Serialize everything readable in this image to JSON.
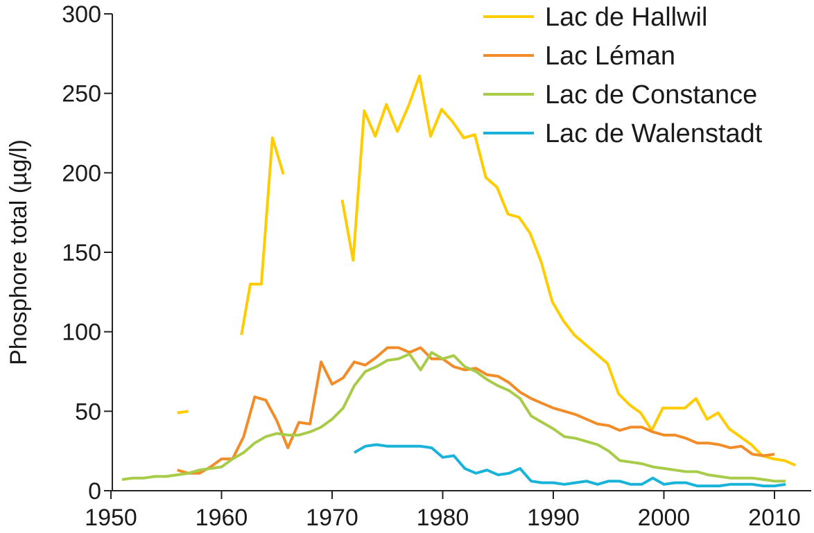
{
  "chart_data": {
    "type": "line",
    "title": "",
    "xlabel": "",
    "ylabel": "Phosphore total (µg/l)",
    "xlim": [
      1949,
      2010.5
    ],
    "ylim": [
      0,
      300
    ],
    "xticks": [
      1950,
      1960,
      1970,
      1980,
      1990,
      2000,
      2010
    ],
    "yticks": [
      0,
      50,
      100,
      150,
      200,
      250,
      300
    ],
    "xtick_labels": [
      "1950",
      "1960",
      "1970",
      "1980",
      "1990",
      "2000",
      "2010"
    ],
    "ytick_labels": [
      "0",
      "50",
      "100",
      "150",
      "200",
      "250",
      "300"
    ],
    "grid": false,
    "legend_position": "top-right",
    "series": [
      {
        "name": "Lac de Hallwil",
        "color": "#ffcc00",
        "segments": [
          [
            [
              1956,
              49
            ],
            [
              1957,
              50
            ]
          ],
          [
            [
              1961.8,
              98
            ],
            [
              1962.6,
              130
            ],
            [
              1963.6,
              130
            ],
            [
              1964.6,
              222
            ],
            [
              1965.6,
              199
            ]
          ],
          [
            [
              1970.9,
              183
            ],
            [
              1971.9,
              145
            ],
            [
              1972.9,
              239
            ],
            [
              1973.9,
              223
            ],
            [
              1974.9,
              243
            ],
            [
              1975.9,
              226
            ],
            [
              1976.9,
              242
            ],
            [
              1977.9,
              261
            ],
            [
              1978.9,
              223
            ],
            [
              1979.9,
              240
            ],
            [
              1980.9,
              232
            ],
            [
              1981.9,
              222
            ],
            [
              1982.9,
              224
            ],
            [
              1983.9,
              197
            ],
            [
              1984.9,
              191
            ],
            [
              1985.9,
              174
            ],
            [
              1986.9,
              172
            ],
            [
              1987.9,
              162
            ],
            [
              1988.9,
              144
            ],
            [
              1989.9,
              119
            ],
            [
              1990.9,
              107
            ],
            [
              1991.9,
              98
            ],
            [
              1992.9,
              92
            ],
            [
              1993.9,
              86
            ],
            [
              1994.9,
              80
            ],
            [
              1995.9,
              61
            ],
            [
              1996.9,
              54
            ],
            [
              1997.9,
              49
            ],
            [
              1998.9,
              38
            ],
            [
              1999.9,
              52
            ],
            [
              2000.9,
              52
            ],
            [
              2001.9,
              52
            ],
            [
              2002.9,
              58
            ],
            [
              2003.9,
              45
            ],
            [
              2004.9,
              49
            ],
            [
              2005.9,
              39
            ],
            [
              2006.9,
              34
            ],
            [
              2007.9,
              29
            ],
            [
              2008.9,
              22
            ],
            [
              2009.9,
              20
            ],
            [
              2010.9,
              19
            ],
            [
              2011.9,
              16
            ]
          ]
        ]
      },
      {
        "name": "Lac Léman",
        "color": "#f28c28",
        "segments": [
          [
            [
              1956,
              13
            ],
            [
              1957,
              11
            ],
            [
              1958,
              11
            ],
            [
              1959,
              15
            ],
            [
              1960,
              20
            ],
            [
              1961,
              20
            ],
            [
              1962,
              34
            ],
            [
              1963,
              59
            ],
            [
              1964,
              57
            ],
            [
              1965,
              44
            ],
            [
              1966,
              27
            ],
            [
              1967,
              43
            ],
            [
              1968,
              42
            ],
            [
              1969,
              81
            ],
            [
              1970,
              67
            ],
            [
              1971,
              71
            ],
            [
              1972,
              81
            ],
            [
              1973,
              79
            ],
            [
              1974,
              84
            ],
            [
              1975,
              90
            ],
            [
              1976,
              90
            ],
            [
              1977,
              87
            ],
            [
              1978,
              90
            ],
            [
              1979,
              83
            ],
            [
              1980,
              83
            ],
            [
              1981,
              78
            ],
            [
              1982,
              76
            ],
            [
              1983,
              77
            ],
            [
              1984,
              73
            ],
            [
              1985,
              72
            ],
            [
              1986,
              68
            ],
            [
              1987,
              62
            ],
            [
              1988,
              58
            ],
            [
              1989,
              55
            ],
            [
              1990,
              52
            ],
            [
              1991,
              50
            ],
            [
              1992,
              48
            ],
            [
              1993,
              45
            ],
            [
              1994,
              42
            ],
            [
              1995,
              41
            ],
            [
              1996,
              38
            ],
            [
              1997,
              40
            ],
            [
              1998,
              40
            ],
            [
              1999,
              37
            ],
            [
              2000,
              35
            ],
            [
              2001,
              35
            ],
            [
              2002,
              33
            ],
            [
              2003,
              30
            ],
            [
              2004,
              30
            ],
            [
              2005,
              29
            ],
            [
              2006,
              27
            ],
            [
              2007,
              28
            ],
            [
              2008,
              23
            ],
            [
              2009,
              22
            ],
            [
              2010,
              23
            ]
          ]
        ]
      },
      {
        "name": "Lac de Constance",
        "color": "#a8cc4a",
        "segments": [
          [
            [
              1951,
              7
            ],
            [
              1952,
              8
            ],
            [
              1953,
              8
            ],
            [
              1954,
              9
            ],
            [
              1955,
              9
            ],
            [
              1956,
              10
            ],
            [
              1957,
              11
            ],
            [
              1958,
              13
            ],
            [
              1959,
              14
            ],
            [
              1960,
              15
            ],
            [
              1961,
              20
            ],
            [
              1962,
              24
            ],
            [
              1963,
              30
            ],
            [
              1964,
              34
            ],
            [
              1965,
              36
            ],
            [
              1966,
              35
            ],
            [
              1967,
              35
            ],
            [
              1968,
              37
            ],
            [
              1969,
              40
            ],
            [
              1970,
              45
            ],
            [
              1971,
              52
            ],
            [
              1972,
              66
            ],
            [
              1973,
              75
            ],
            [
              1974,
              78
            ],
            [
              1975,
              82
            ],
            [
              1976,
              83
            ],
            [
              1977,
              86
            ],
            [
              1978,
              76
            ],
            [
              1979,
              87
            ],
            [
              1980,
              83
            ],
            [
              1981,
              85
            ],
            [
              1982,
              78
            ],
            [
              1983,
              75
            ],
            [
              1984,
              70
            ],
            [
              1985,
              66
            ],
            [
              1986,
              63
            ],
            [
              1987,
              58
            ],
            [
              1988,
              47
            ],
            [
              1989,
              43
            ],
            [
              1990,
              39
            ],
            [
              1991,
              34
            ],
            [
              1992,
              33
            ],
            [
              1993,
              31
            ],
            [
              1994,
              29
            ],
            [
              1995,
              25
            ],
            [
              1996,
              19
            ],
            [
              1997,
              18
            ],
            [
              1998,
              17
            ],
            [
              1999,
              15
            ],
            [
              2000,
              14
            ],
            [
              2001,
              13
            ],
            [
              2002,
              12
            ],
            [
              2003,
              12
            ],
            [
              2004,
              10
            ],
            [
              2005,
              9
            ],
            [
              2006,
              8
            ],
            [
              2007,
              8
            ],
            [
              2008,
              8
            ],
            [
              2009,
              7
            ],
            [
              2010,
              6
            ],
            [
              2011,
              6
            ]
          ]
        ]
      },
      {
        "name": "Lac de Walenstadt",
        "color": "#19b2d9",
        "segments": [
          [
            [
              1972,
              24
            ],
            [
              1973,
              28
            ],
            [
              1974,
              29
            ],
            [
              1975,
              28
            ],
            [
              1976,
              28
            ],
            [
              1977,
              28
            ],
            [
              1978,
              28
            ],
            [
              1979,
              27
            ],
            [
              1980,
              21
            ],
            [
              1981,
              22
            ],
            [
              1982,
              14
            ],
            [
              1983,
              11
            ],
            [
              1984,
              13
            ],
            [
              1985,
              10
            ],
            [
              1986,
              11
            ],
            [
              1987,
              14
            ],
            [
              1988,
              6
            ],
            [
              1989,
              5
            ],
            [
              1990,
              5
            ],
            [
              1991,
              4
            ],
            [
              1992,
              5
            ],
            [
              1993,
              6
            ],
            [
              1994,
              4
            ],
            [
              1995,
              6
            ],
            [
              1996,
              6
            ],
            [
              1997,
              4
            ],
            [
              1998,
              4
            ],
            [
              1999,
              8
            ],
            [
              2000,
              4
            ],
            [
              2001,
              5
            ],
            [
              2002,
              5
            ],
            [
              2003,
              3
            ],
            [
              2004,
              3
            ],
            [
              2005,
              3
            ],
            [
              2006,
              4
            ],
            [
              2007,
              4
            ],
            [
              2008,
              4
            ],
            [
              2009,
              3
            ],
            [
              2010,
              3
            ],
            [
              2011,
              4
            ]
          ]
        ]
      }
    ]
  }
}
